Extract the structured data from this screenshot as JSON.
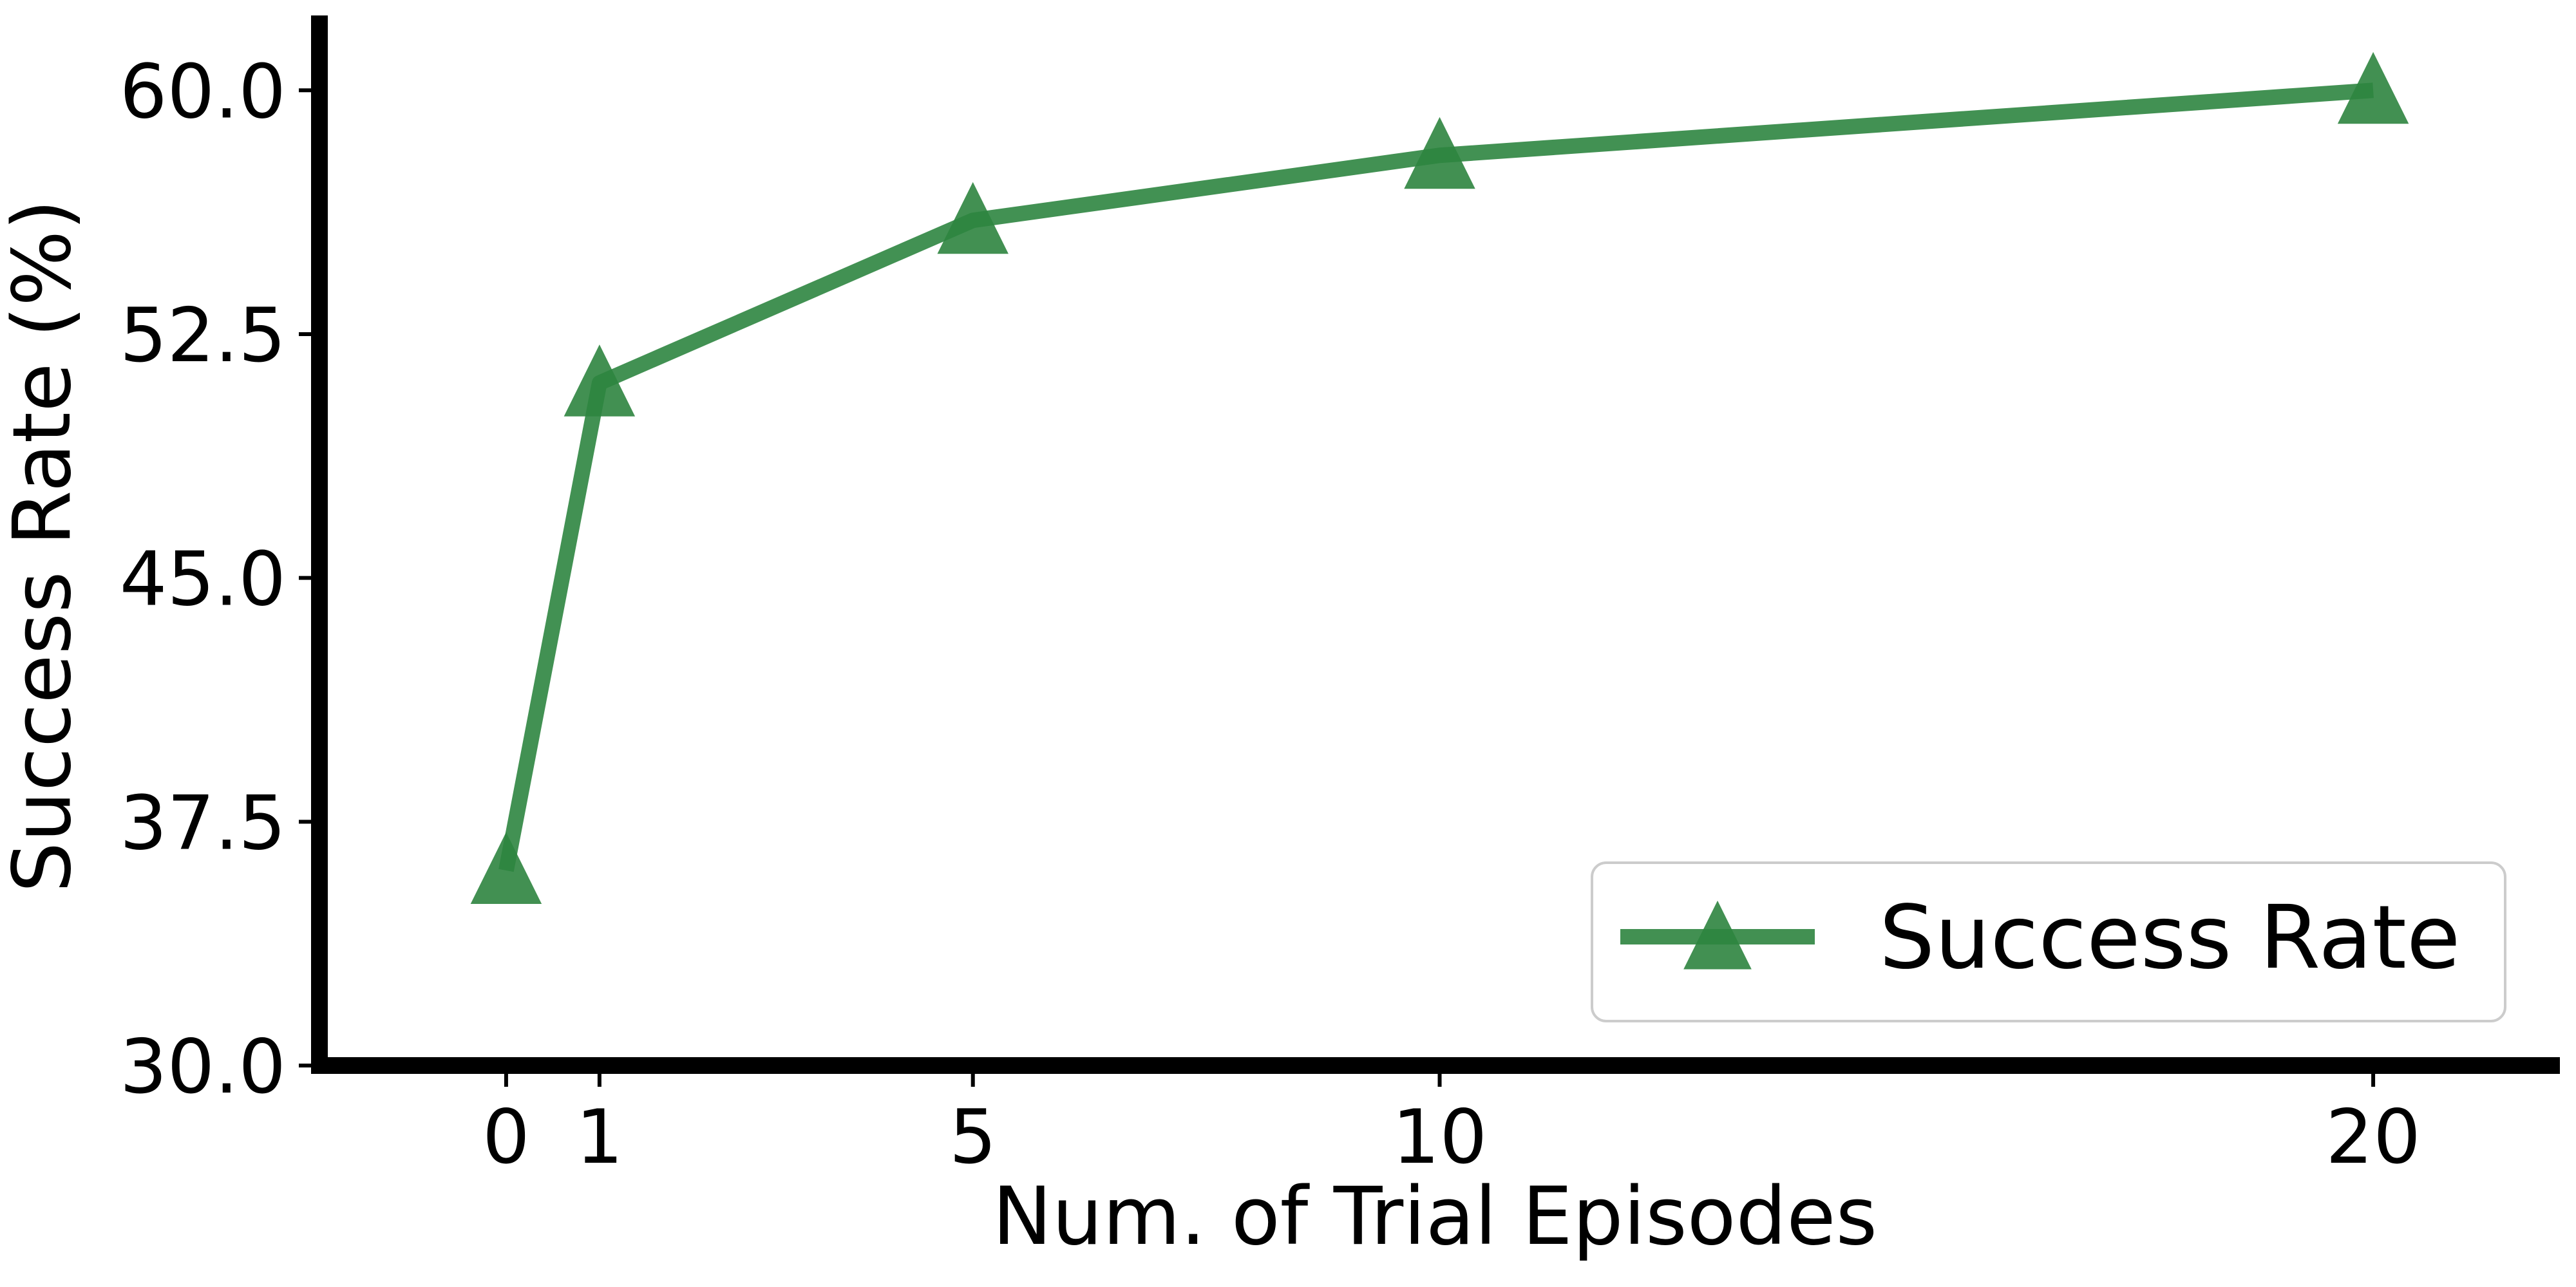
{
  "chart_data": {
    "type": "line",
    "title": "",
    "xlabel": "Num. of Trial Episodes",
    "ylabel": "Success Rate (%)",
    "x": [
      0,
      1,
      5,
      10,
      20
    ],
    "x_ticks": [
      0,
      1,
      5,
      10,
      20
    ],
    "x_tick_labels": [
      "0",
      "1",
      "5",
      "10",
      "20"
    ],
    "xlim": [
      -2,
      22
    ],
    "y_ticks": [
      30.0,
      37.5,
      45.0,
      52.5,
      60.0
    ],
    "y_tick_labels": [
      "30.0",
      "37.5",
      "45.0",
      "52.5",
      "60.0"
    ],
    "ylim": [
      30.0,
      62.6
    ],
    "grid": false,
    "legend_position": "lower right",
    "series": [
      {
        "name": "Success Rate",
        "values": [
          36.0,
          51.0,
          56.0,
          58.0,
          60.0
        ],
        "color": "#2e8540",
        "marker": "triangle-up"
      }
    ]
  }
}
